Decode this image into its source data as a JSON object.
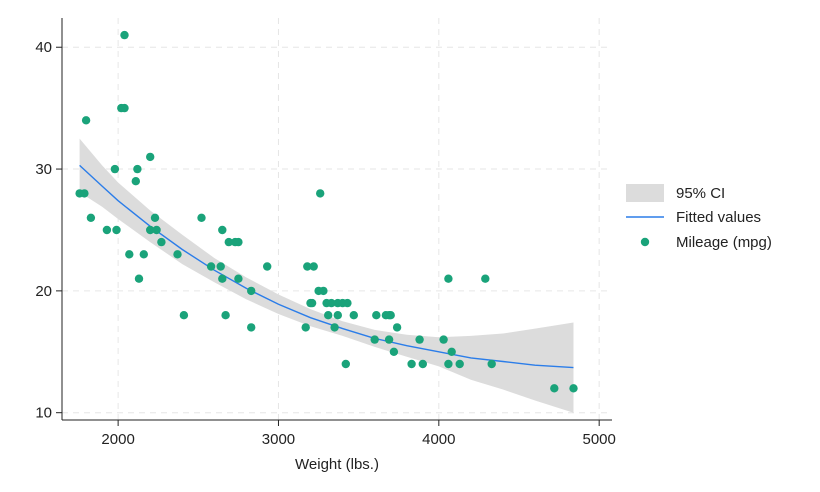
{
  "chart_data": {
    "type": "scatter",
    "title": "",
    "xlabel": "Weight (lbs.)",
    "ylabel": "",
    "xlim": [
      1700,
      5000
    ],
    "ylim": [
      9.5,
      42
    ],
    "xticks": [
      2000,
      3000,
      4000,
      5000
    ],
    "yticks": [
      10,
      20,
      30,
      40
    ],
    "grid": "dashed",
    "legend_position": "right",
    "colors": {
      "points": "#1aa37a",
      "fit": "#2b7de9",
      "ci": "#dcdcdc",
      "grid": "#e6e6e6",
      "axis": "#222222"
    },
    "legend": [
      {
        "label": "95% CI",
        "kind": "area"
      },
      {
        "label": "Fitted values",
        "kind": "line"
      },
      {
        "label": "Mileage (mpg)",
        "kind": "point"
      }
    ],
    "series": [
      {
        "name": "Mileage (mpg)",
        "kind": "scatter",
        "x": [
          1760,
          1790,
          1800,
          1830,
          1930,
          1980,
          1990,
          2020,
          2040,
          2040,
          2070,
          2110,
          2120,
          2130,
          2160,
          2200,
          2200,
          2230,
          2240,
          2270,
          2370,
          2410,
          2520,
          2580,
          2640,
          2650,
          2650,
          2670,
          2690,
          2730,
          2750,
          2750,
          2830,
          2830,
          2930,
          3170,
          3180,
          3200,
          3210,
          3220,
          3250,
          3260,
          3280,
          3300,
          3310,
          3330,
          3350,
          3370,
          3370,
          3400,
          3420,
          3430,
          3470,
          3600,
          3610,
          3670,
          3690,
          3690,
          3700,
          3720,
          3740,
          3830,
          3880,
          3900,
          4030,
          4060,
          4060,
          4080,
          4130,
          4290,
          4330,
          4720,
          4840
        ],
        "y": [
          28,
          28,
          34,
          26,
          25,
          30,
          25,
          35,
          41,
          35,
          23,
          29,
          30,
          21,
          23,
          31,
          25,
          26,
          25,
          24,
          23,
          18,
          26,
          22,
          22,
          21,
          25,
          18,
          24,
          24,
          24,
          21,
          20,
          17,
          22,
          17,
          22,
          19,
          19,
          22,
          20,
          28,
          20,
          19,
          18,
          19,
          17,
          18,
          19,
          19,
          14,
          19,
          18,
          16,
          18,
          18,
          18,
          16,
          18,
          15,
          17,
          14,
          16,
          14,
          16,
          21,
          14,
          15,
          14,
          21,
          14,
          12,
          12
        ]
      },
      {
        "name": "Fitted values",
        "kind": "line",
        "x": [
          1760,
          1900,
          2000,
          2200,
          2400,
          2600,
          2800,
          3000,
          3200,
          3400,
          3600,
          3800,
          4000,
          4200,
          4400,
          4600,
          4840
        ],
        "y": [
          30.3,
          28.6,
          27.4,
          25.3,
          23.4,
          21.7,
          20.2,
          18.9,
          17.8,
          16.9,
          16.1,
          15.5,
          15.0,
          14.5,
          14.2,
          13.9,
          13.7
        ]
      },
      {
        "name": "95% CI",
        "kind": "band",
        "x": [
          1760,
          1900,
          2000,
          2200,
          2400,
          2600,
          2800,
          3000,
          3200,
          3400,
          3600,
          3800,
          4000,
          4200,
          4400,
          4600,
          4840
        ],
        "upper": [
          32.5,
          30.3,
          28.9,
          26.6,
          24.6,
          22.7,
          21.1,
          19.7,
          18.5,
          17.5,
          16.8,
          16.4,
          16.2,
          16.3,
          16.5,
          16.9,
          17.4
        ],
        "lower": [
          28.1,
          26.9,
          25.9,
          24.0,
          22.2,
          20.7,
          19.3,
          18.1,
          17.1,
          16.3,
          15.4,
          14.6,
          13.8,
          12.7,
          11.9,
          11.0,
          10.0
        ]
      }
    ]
  }
}
